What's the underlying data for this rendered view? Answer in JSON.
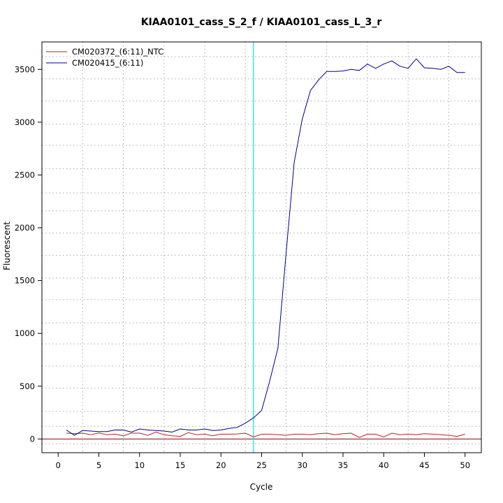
{
  "chart_data": {
    "type": "line",
    "title": "KIAA0101_cass_S_2_f / KIAA0101_cass_L_3_r",
    "xlabel": "Cycle",
    "ylabel": "Fluorescent",
    "xlim": [
      -2,
      52
    ],
    "ylim": [
      -130,
      3760
    ],
    "x_ticks": [
      0,
      5,
      10,
      15,
      20,
      25,
      30,
      35,
      40,
      45,
      50
    ],
    "y_ticks": [
      0,
      500,
      1000,
      1500,
      2000,
      2500,
      3000,
      3500
    ],
    "x_grid": [
      3,
      8,
      13,
      18,
      23,
      28,
      33,
      38,
      43,
      48
    ],
    "y_grid": [
      -45,
      120,
      260,
      480,
      690,
      900,
      1100,
      1320,
      1525,
      1740,
      1950,
      2160,
      2330,
      2560,
      2780,
      2980,
      3200,
      3410,
      3620
    ],
    "grid": true,
    "legend_position": "top-left",
    "threshold": {
      "x": 24,
      "color": "#00e5ee"
    },
    "baseline": {
      "y": 0,
      "color": "#8b0000"
    },
    "x": [
      1,
      2,
      3,
      4,
      5,
      6,
      7,
      8,
      9,
      10,
      11,
      12,
      13,
      14,
      15,
      16,
      17,
      18,
      19,
      20,
      21,
      22,
      23,
      24,
      25,
      26,
      27,
      28,
      29,
      30,
      31,
      32,
      33,
      34,
      35,
      36,
      37,
      38,
      39,
      40,
      41,
      42,
      43,
      44,
      45,
      46,
      47,
      48,
      49,
      50
    ],
    "series": [
      {
        "name": "CM020372_(6:11)_NTC",
        "color": "#b22222",
        "values": [
          55,
          50,
          55,
          40,
          58,
          40,
          45,
          30,
          55,
          55,
          35,
          65,
          40,
          30,
          25,
          60,
          40,
          45,
          30,
          45,
          45,
          48,
          55,
          20,
          45,
          45,
          40,
          35,
          45,
          45,
          40,
          50,
          55,
          40,
          50,
          55,
          15,
          45,
          45,
          20,
          55,
          40,
          45,
          40,
          50,
          45,
          40,
          35,
          25,
          45
        ]
      },
      {
        "name": "CM020415_(6:11)",
        "color": "#00008b",
        "values": [
          85,
          35,
          80,
          75,
          70,
          70,
          85,
          85,
          65,
          95,
          85,
          80,
          75,
          65,
          95,
          85,
          85,
          95,
          80,
          85,
          100,
          110,
          150,
          200,
          270,
          550,
          860,
          1750,
          2620,
          3030,
          3300,
          3400,
          3480,
          3480,
          3485,
          3500,
          3490,
          3550,
          3510,
          3550,
          3580,
          3530,
          3510,
          3600,
          3515,
          3510,
          3500,
          3530,
          3470,
          3470
        ]
      }
    ]
  }
}
